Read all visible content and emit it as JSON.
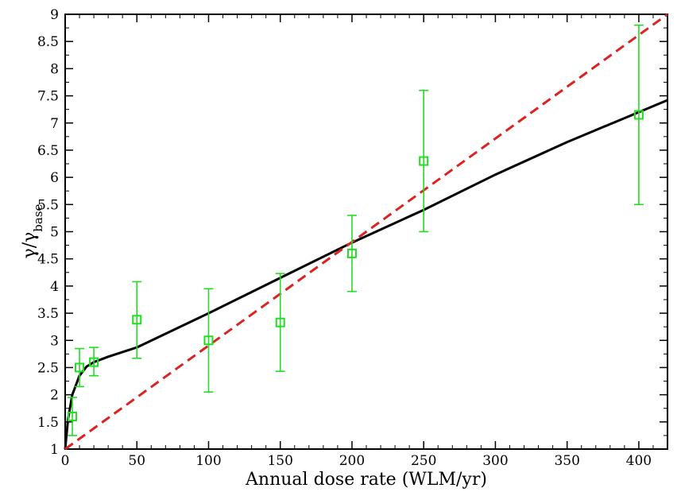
{
  "chart_data": {
    "type": "scatter",
    "xlabel": "Annual dose rate (WLM/yr)",
    "ylabel": {
      "main": "γ/γ",
      "sub": "base"
    },
    "xlim": [
      0,
      420
    ],
    "ylim": [
      1,
      9
    ],
    "xticks": [
      0,
      50,
      100,
      150,
      200,
      250,
      300,
      350,
      400
    ],
    "xtick_labels": [
      "0",
      "50",
      "100",
      "150",
      "200",
      "250",
      "300",
      "350",
      "400"
    ],
    "yticks": [
      1,
      1.5,
      2,
      2.5,
      3,
      3.5,
      4,
      4.5,
      5,
      5.5,
      6,
      6.5,
      7,
      7.5,
      8,
      8.5,
      9
    ],
    "ytick_labels": [
      "1",
      "1.5",
      "2",
      "2.5",
      "3",
      "3.5",
      "4",
      "4.5",
      "5",
      "5.5",
      "6",
      "6.5",
      "7",
      "7.5",
      "8",
      "8.5",
      "9"
    ],
    "grid": false,
    "series": [
      {
        "kind": "points-with-error-bars",
        "color": "#22dd22",
        "marker": "open-square",
        "points": [
          {
            "x": 5,
            "y": 1.6,
            "ylow": 1.25,
            "yhigh": 1.95
          },
          {
            "x": 10,
            "y": 2.5,
            "ylow": 2.15,
            "yhigh": 2.85
          },
          {
            "x": 20,
            "y": 2.6,
            "ylow": 2.35,
            "yhigh": 2.87
          },
          {
            "x": 50,
            "y": 3.38,
            "ylow": 2.67,
            "yhigh": 4.08
          },
          {
            "x": 100,
            "y": 3.0,
            "ylow": 2.05,
            "yhigh": 3.95
          },
          {
            "x": 150,
            "y": 3.33,
            "ylow": 2.43,
            "yhigh": 4.23
          },
          {
            "x": 200,
            "y": 4.6,
            "ylow": 3.9,
            "yhigh": 5.3
          },
          {
            "x": 250,
            "y": 6.3,
            "ylow": 5.0,
            "yhigh": 7.6
          },
          {
            "x": 400,
            "y": 7.15,
            "ylow": 5.5,
            "yhigh": 8.8
          }
        ]
      },
      {
        "kind": "line",
        "color": "#000000",
        "style": "solid",
        "points": [
          [
            0,
            1.0
          ],
          [
            2,
            1.55
          ],
          [
            5,
            2.0
          ],
          [
            10,
            2.35
          ],
          [
            15,
            2.52
          ],
          [
            20,
            2.6
          ],
          [
            30,
            2.7
          ],
          [
            50,
            2.87
          ],
          [
            100,
            3.5
          ],
          [
            150,
            4.15
          ],
          [
            200,
            4.8
          ],
          [
            250,
            5.4
          ],
          [
            300,
            6.05
          ],
          [
            350,
            6.65
          ],
          [
            400,
            7.2
          ],
          [
            420,
            7.42
          ]
        ]
      },
      {
        "kind": "line",
        "color": "#dd2222",
        "style": "dashed",
        "points": [
          [
            0,
            1.0
          ],
          [
            420,
            9.0
          ]
        ]
      }
    ]
  }
}
